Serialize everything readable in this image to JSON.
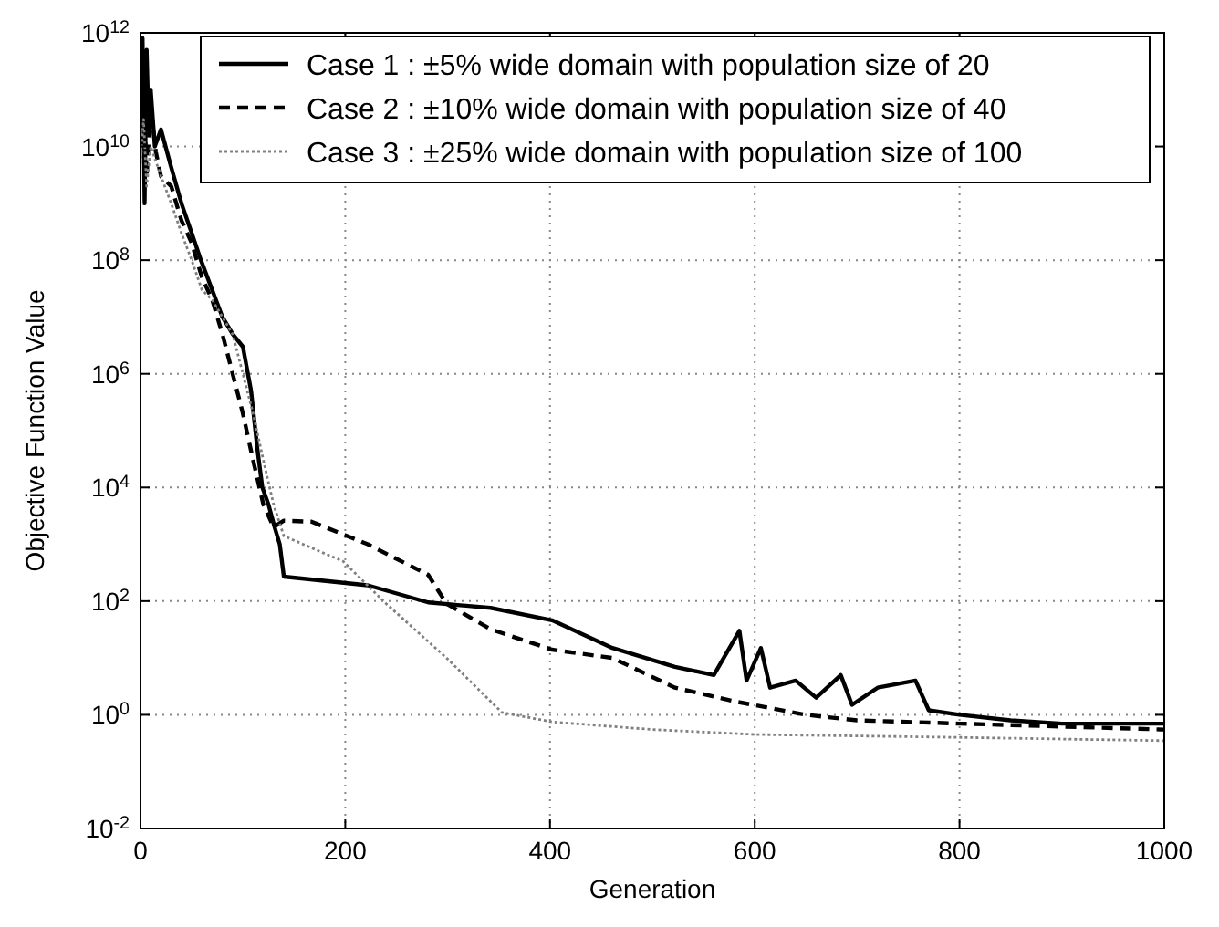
{
  "chart_data": {
    "type": "line",
    "xlabel": "Generation",
    "ylabel": "Objective Function Value",
    "log": "y",
    "grid": true,
    "legend": "top right",
    "marker": "none",
    "xlim": [
      0,
      1000
    ],
    "xticks": [
      0,
      200,
      400,
      600,
      800,
      1000
    ],
    "ylim": [
      0.01,
      1000000000000
    ],
    "yticks": [
      {
        "value": 0.01,
        "label": "10$^{-2}$"
      },
      {
        "value": 1,
        "label": "10$^{0}$"
      },
      {
        "value": 100,
        "label": "10$^{2}$"
      },
      {
        "value": 10000,
        "label": "10$^{4}$"
      },
      {
        "value": 1000000,
        "label": "10$^{6}$"
      },
      {
        "value": 100000000,
        "label": "10$^{8}$"
      },
      {
        "value": 10000000000,
        "label": "10$^{10}$"
      },
      {
        "value": 1000000000000,
        "label": "10$^{12}$"
      }
    ],
    "series": [
      {
        "name": "Case 1 : ±5% wide domain with population size of 20",
        "color": "#000000",
        "line_style": "solid",
        "x": [
          0,
          2,
          4,
          6,
          8,
          10,
          14,
          20,
          29,
          40,
          50,
          59,
          70,
          80,
          90,
          100,
          108,
          114,
          119,
          125,
          131,
          136,
          140,
          222,
          281,
          342,
          402,
          461,
          522,
          560,
          585,
          592,
          606,
          615,
          640,
          660,
          684,
          695,
          720,
          757,
          770,
          800,
          850,
          900,
          1000
        ],
        "values": [
          30000000000.0,
          800000000000.0,
          1000000000.0,
          500000000000.0,
          20000000000.0,
          100000000000.0,
          10000000000.0,
          20000000000.0,
          5000000000.0,
          1000000000.0,
          300000000.0,
          100000000.0,
          30000000.0,
          10000000.0,
          5000000.0,
          3000000.0,
          500000.0,
          50000.0,
          10000.0,
          5000.0,
          2000.0,
          1000.0,
          270,
          190,
          95,
          76,
          46,
          15,
          7,
          5,
          30,
          4,
          15,
          3,
          4,
          2,
          5,
          1.5,
          3,
          4,
          1.2,
          1,
          0.8,
          0.7,
          0.7
        ]
      },
      {
        "name": "Case 2 : ±10% wide domain with population size of 40",
        "color": "#000000",
        "line_style": "dashed",
        "x": [
          0,
          3,
          6,
          10,
          15,
          20,
          30,
          40,
          50,
          60,
          70,
          80,
          90,
          100,
          110,
          120,
          130,
          140,
          167,
          222,
          281,
          299,
          342,
          402,
          461,
          522,
          582,
          650,
          700,
          800,
          1000
        ],
        "values": [
          10000000000.0,
          100000000000.0,
          3000000000.0,
          50000000000.0,
          8000000000.0,
          3000000000.0,
          2000000000.0,
          500000000.0,
          200000000.0,
          50000000.0,
          20000000.0,
          5000000.0,
          1000000.0,
          200000.0,
          30000.0,
          5000.0,
          2000.0,
          2600,
          2500,
          1000,
          290,
          90,
          32,
          14,
          10,
          3,
          1.7,
          1,
          0.8,
          0.7,
          0.55
        ]
      },
      {
        "name": "Case 3 : ±25% wide domain with population size of 100",
        "color": "#808080",
        "line_style": "dotted",
        "x": [
          0,
          3,
          6,
          10,
          20,
          30,
          40,
          50,
          60,
          70,
          80,
          90,
          100,
          110,
          120,
          130,
          140,
          198,
          240,
          299,
          353,
          402,
          500,
          600,
          800,
          1000
        ],
        "values": [
          5000000000.0,
          30000000000.0,
          2000000000.0,
          10000000000.0,
          3000000000.0,
          1000000000.0,
          300000000.0,
          100000000.0,
          30000000.0,
          20000000.0,
          10000000.0,
          5000000.0,
          1000000.0,
          200000.0,
          30000.0,
          5000.0,
          1400,
          500,
          90,
          10,
          1.1,
          0.75,
          0.55,
          0.45,
          0.4,
          0.35
        ]
      }
    ]
  }
}
